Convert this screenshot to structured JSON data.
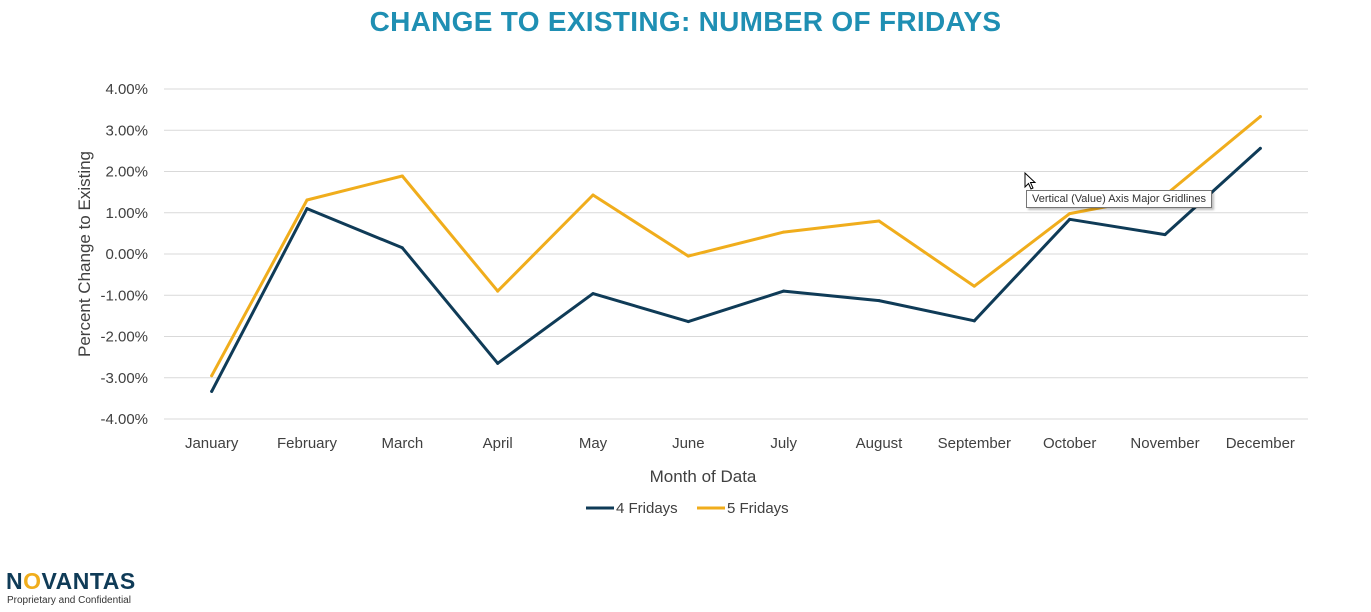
{
  "colors": {
    "title": "#1f8fb3",
    "series_4": "#0f3b57",
    "series_5": "#f0ad1c",
    "grid": "#d9d9d9",
    "text": "#404040"
  },
  "tooltip": "Vertical (Value) Axis Major Gridlines",
  "footer": {
    "logo_pre": "N",
    "logo_o": "O",
    "logo_post": "VANTAS",
    "tagline": "Proprietary and Confidential"
  },
  "chart_data": {
    "type": "line",
    "title": "CHANGE TO EXISTING: NUMBER OF FRIDAYS",
    "xlabel": "Month of Data",
    "ylabel": "Percent Change to Existing",
    "categories": [
      "January",
      "February",
      "March",
      "April",
      "May",
      "June",
      "July",
      "August",
      "September",
      "October",
      "November",
      "December"
    ],
    "ylim": [
      -4,
      4
    ],
    "yticks": [
      4,
      3,
      2,
      1,
      0,
      -1,
      -2,
      -3,
      -4
    ],
    "ytick_labels": [
      "4.00%",
      "3.00%",
      "2.00%",
      "1.00%",
      "0.00%",
      "-1.00%",
      "-2.00%",
      "-3.00%",
      "-4.00%"
    ],
    "grid": true,
    "legend_position": "bottom",
    "series": [
      {
        "name": "4 Fridays",
        "values": [
          -3.33,
          1.1,
          0.15,
          -2.65,
          -0.96,
          -1.64,
          -0.9,
          -1.13,
          -1.62,
          0.84,
          0.47,
          2.56
        ]
      },
      {
        "name": "5 Fridays",
        "values": [
          -2.95,
          1.31,
          1.89,
          -0.9,
          1.43,
          -0.05,
          0.53,
          0.8,
          -0.78,
          0.98,
          1.42,
          3.33
        ]
      }
    ]
  }
}
